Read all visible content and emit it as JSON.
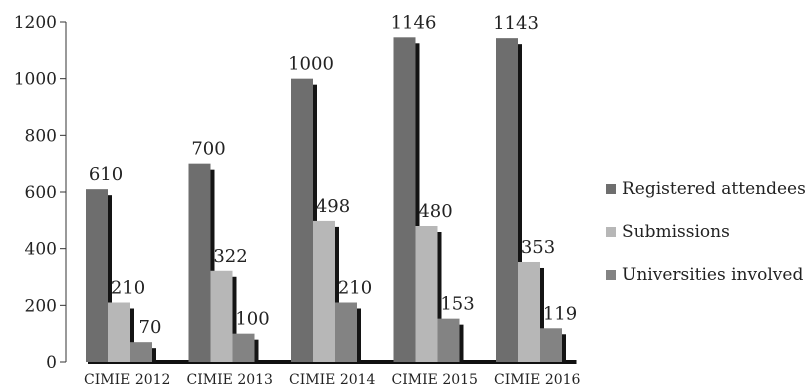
{
  "chart_data": {
    "type": "bar",
    "categories": [
      "CIMIE 2012",
      "CIMIE 2013",
      "CIMIE 2014",
      "CIMIE 2015",
      "CIMIE 2016"
    ],
    "series": [
      {
        "name": "Registered attendees",
        "values": [
          610,
          700,
          1000,
          1146,
          1143
        ],
        "color": "#6e6e6e"
      },
      {
        "name": "Submissions",
        "values": [
          210,
          322,
          498,
          480,
          353
        ],
        "color": "#b7b7b7"
      },
      {
        "name": "Universities involved",
        "values": [
          70,
          100,
          210,
          153,
          119
        ],
        "color": "#838383"
      }
    ],
    "yticks": [
      "0",
      "200",
      "400",
      "600",
      "800",
      "1000",
      "1200"
    ],
    "ylim": [
      0,
      1200
    ],
    "grid": false,
    "legend": "right",
    "title": "",
    "xlabel": "",
    "ylabel": ""
  }
}
